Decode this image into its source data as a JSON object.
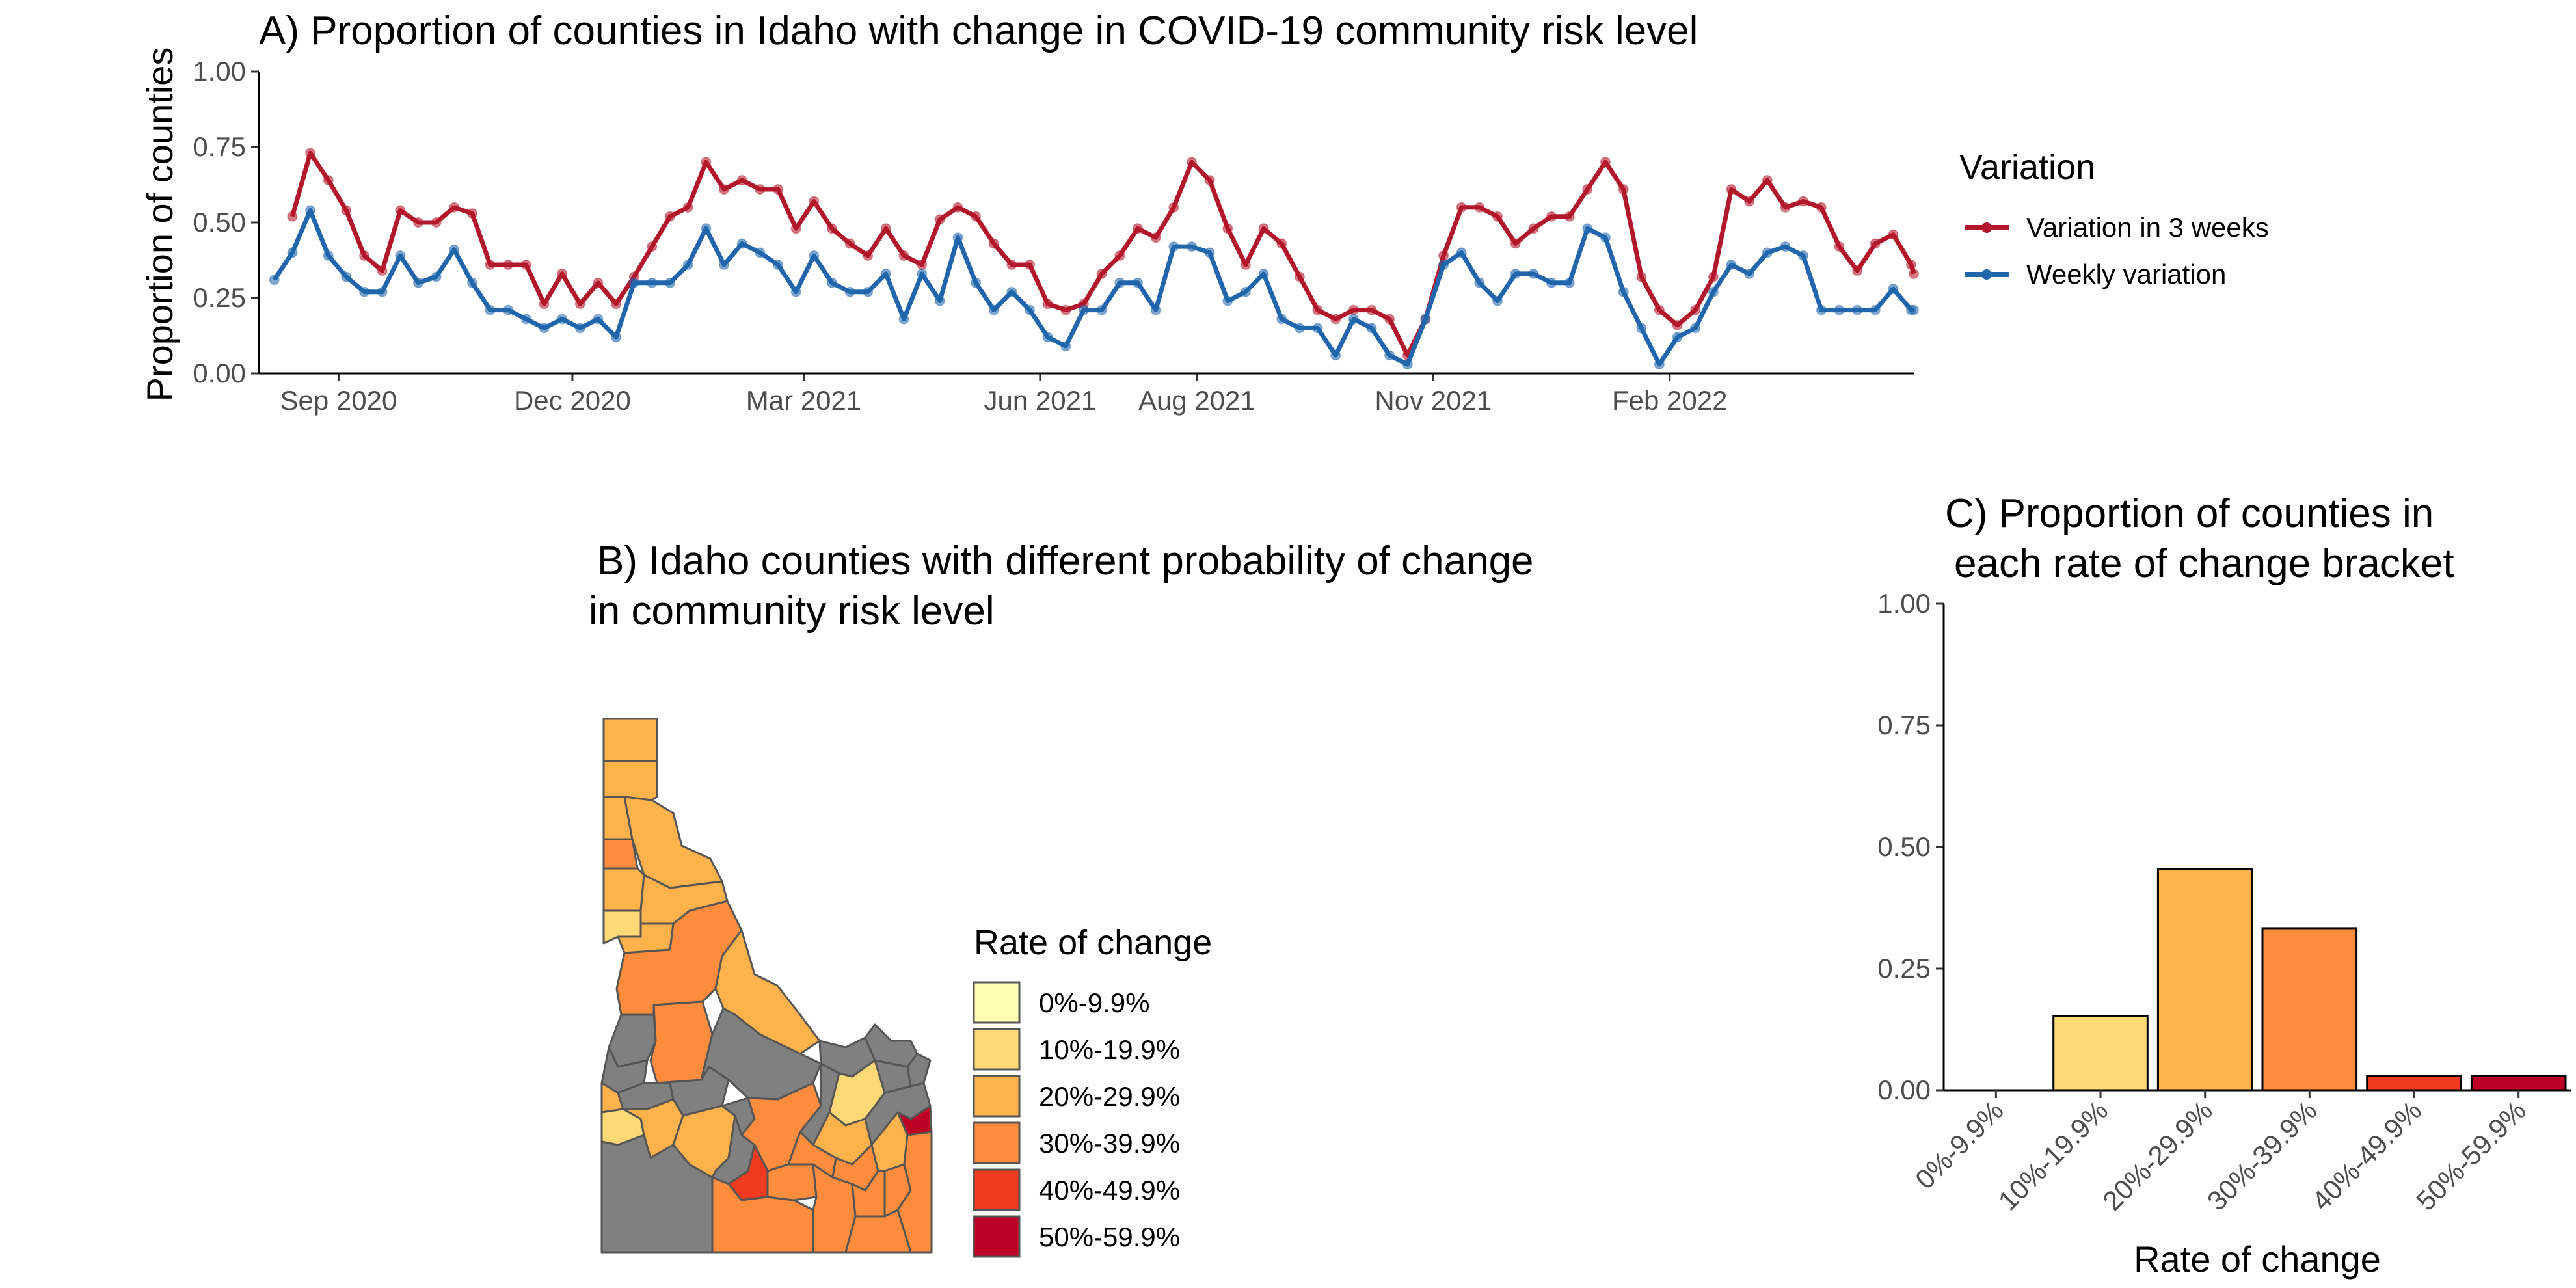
{
  "chart_data": [
    {
      "type": "line",
      "panel": "A",
      "title": "A) Proportion of counties in Idaho with change in COVID-19 community risk level",
      "ylabel": "Proportion of counties",
      "xlabel": "",
      "ylim": [
        0,
        1
      ],
      "yticks": [
        "0.00",
        "0.25",
        "0.50",
        "0.75",
        "1.00"
      ],
      "x_tick_labels": [
        "Sep 2020",
        "Dec 2020",
        "Mar 2021",
        "Jun 2021",
        "Aug 2021",
        "Nov 2021",
        "Feb 2022"
      ],
      "x_tick_dates": [
        "2020-09-01",
        "2020-12-01",
        "2021-03-01",
        "2021-06-01",
        "2021-08-01",
        "2021-11-01",
        "2022-02-01"
      ],
      "x_start": "2020-08-01",
      "x_end": "2022-05-07",
      "grid": false,
      "legend": {
        "title": "Variation",
        "placement": "right",
        "entries": [
          "Variation in 3 weeks",
          "Weekly variation"
        ]
      },
      "series": [
        {
          "name": "Variation in 3 weeks",
          "color": "#b2182b",
          "start": "2020-08-14",
          "step_days": 7,
          "values": [
            0.52,
            0.73,
            0.64,
            0.54,
            0.39,
            0.34,
            0.54,
            0.5,
            0.5,
            0.55,
            0.53,
            0.36,
            0.36,
            0.36,
            0.23,
            0.33,
            0.23,
            0.3,
            0.23,
            0.32,
            0.42,
            0.52,
            0.55,
            0.7,
            0.61,
            0.64,
            0.61,
            0.61,
            0.48,
            0.57,
            0.48,
            0.43,
            0.39,
            0.48,
            0.39,
            0.36,
            0.51,
            0.55,
            0.52,
            0.43,
            0.36,
            0.36,
            0.23,
            0.21,
            0.23,
            0.33,
            0.39,
            0.48,
            0.45,
            0.55,
            0.7,
            0.64,
            0.48,
            0.36,
            0.48,
            0.43,
            0.32,
            0.21,
            0.18,
            0.21,
            0.21,
            0.18,
            0.06,
            0.18,
            0.39,
            0.55,
            0.55,
            0.52,
            0.43,
            0.48,
            0.52,
            0.52,
            0.61,
            0.7,
            0.61,
            0.32,
            0.21,
            0.16,
            0.21,
            0.32,
            0.61,
            0.57,
            0.64,
            0.55,
            0.57,
            0.55,
            0.42,
            0.34,
            0.43,
            0.46,
            0.36,
            0.33
          ]
        },
        {
          "name": "Weekly variation",
          "color": "#2166ac",
          "start": "2020-08-07",
          "step_days": 7,
          "values": [
            0.31,
            0.4,
            0.54,
            0.39,
            0.32,
            0.27,
            0.27,
            0.39,
            0.3,
            0.32,
            0.41,
            0.3,
            0.21,
            0.21,
            0.18,
            0.15,
            0.18,
            0.15,
            0.18,
            0.12,
            0.3,
            0.3,
            0.3,
            0.36,
            0.48,
            0.36,
            0.43,
            0.4,
            0.36,
            0.27,
            0.39,
            0.3,
            0.27,
            0.27,
            0.33,
            0.18,
            0.33,
            0.24,
            0.45,
            0.3,
            0.21,
            0.27,
            0.21,
            0.12,
            0.09,
            0.21,
            0.21,
            0.3,
            0.3,
            0.21,
            0.42,
            0.42,
            0.4,
            0.24,
            0.27,
            0.33,
            0.18,
            0.15,
            0.15,
            0.06,
            0.18,
            0.15,
            0.06,
            0.03,
            0.18,
            0.36,
            0.4,
            0.3,
            0.24,
            0.33,
            0.33,
            0.3,
            0.3,
            0.48,
            0.45,
            0.27,
            0.15,
            0.03,
            0.12,
            0.15,
            0.27,
            0.36,
            0.33,
            0.4,
            0.42,
            0.39,
            0.21,
            0.21,
            0.21,
            0.21,
            0.28,
            0.21,
            0.21
          ]
        }
      ]
    },
    {
      "type": "map",
      "panel": "B",
      "title_lines": [
        "B)  Idaho counties with different probability of change",
        "in community risk level"
      ],
      "legend": {
        "title": "Rate of change",
        "entries": [
          "0%-9.9%",
          "10%-19.9%",
          "20%-29.9%",
          "30%-39.9%",
          "40%-49.9%",
          "50%-59.9%"
        ],
        "colors": [
          "#ffffb2",
          "#fed976",
          "#feb24c",
          "#fd8d3c",
          "#f03b20",
          "#bd0026"
        ]
      },
      "na_color": "#808080"
    },
    {
      "type": "bar",
      "panel": "C",
      "title_lines": [
        "C) Proportion of counties in",
        "each rate of change bracket"
      ],
      "xlabel": "Rate of change",
      "ylabel": "",
      "ylim": [
        0,
        1
      ],
      "yticks": [
        "0.00",
        "0.25",
        "0.50",
        "0.75",
        "1.00"
      ],
      "categories": [
        "0%-9.9%",
        "10%-19.9%",
        "20%-29.9%",
        "30%-39.9%",
        "40%-49.9%",
        "50%-59.9%"
      ],
      "values": [
        0.0,
        0.152,
        0.455,
        0.333,
        0.03,
        0.03
      ],
      "colors": [
        "#ffffb2",
        "#fed976",
        "#feb24c",
        "#fd8d3c",
        "#f03b20",
        "#bd0026"
      ]
    }
  ]
}
